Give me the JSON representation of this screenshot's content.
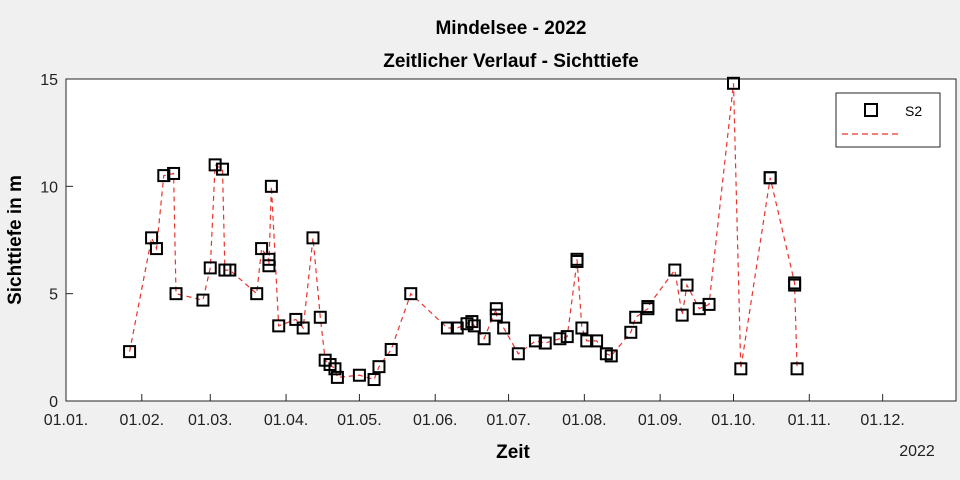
{
  "chart_data": {
    "type": "scatter",
    "title": [
      "Mindelsee - 2022",
      "Zeitlicher Verlauf - Sichttiefe"
    ],
    "xlabel": "Zeit",
    "ylabel": "Sichttiefe in m",
    "year_label": "2022",
    "ylim": [
      0,
      15
    ],
    "yticks": [
      "0",
      "5",
      "10",
      "15"
    ],
    "xlim": [
      "2022-01-01",
      "2022-12-31"
    ],
    "xtick_dates": [
      "2022-01-01",
      "2022-02-01",
      "2022-03-01",
      "2022-04-01",
      "2022-05-01",
      "2022-06-01",
      "2022-07-01",
      "2022-08-01",
      "2022-09-01",
      "2022-10-01",
      "2022-11-01",
      "2022-12-01"
    ],
    "xticks": [
      "01.01.",
      "01.02.",
      "01.03.",
      "01.04.",
      "01.05.",
      "01.06.",
      "01.07.",
      "01.08.",
      "01.09.",
      "01.10.",
      "01.11.",
      "01.12."
    ],
    "grid": false,
    "legend_position": "top-right",
    "series": [
      {
        "name": "S2",
        "marker": "square",
        "marker_color": "#000000",
        "line_color": "#e8342f",
        "line_style": "dashed",
        "x": [
          "2022-01-27",
          "2022-02-05",
          "2022-02-07",
          "2022-02-10",
          "2022-02-14",
          "2022-02-15",
          "2022-02-26",
          "2022-03-01",
          "2022-03-03",
          "2022-03-06",
          "2022-03-07",
          "2022-03-09",
          "2022-03-20",
          "2022-03-22",
          "2022-03-25",
          "2022-03-25",
          "2022-03-26",
          "2022-03-29",
          "2022-04-05",
          "2022-04-08",
          "2022-04-12",
          "2022-04-15",
          "2022-04-17",
          "2022-04-19",
          "2022-04-21",
          "2022-04-22",
          "2022-05-01",
          "2022-05-07",
          "2022-05-09",
          "2022-05-14",
          "2022-05-22",
          "2022-06-06",
          "2022-06-10",
          "2022-06-14",
          "2022-06-16",
          "2022-06-17",
          "2022-06-21",
          "2022-06-26",
          "2022-06-26",
          "2022-06-29",
          "2022-07-05",
          "2022-07-12",
          "2022-07-16",
          "2022-07-22",
          "2022-07-25",
          "2022-07-29",
          "2022-07-29",
          "2022-07-31",
          "2022-08-02",
          "2022-08-06",
          "2022-08-10",
          "2022-08-12",
          "2022-08-20",
          "2022-08-22",
          "2022-08-27",
          "2022-08-27",
          "2022-09-07",
          "2022-09-10",
          "2022-09-12",
          "2022-09-17",
          "2022-09-21",
          "2022-10-01",
          "2022-10-04",
          "2022-10-16",
          "2022-10-16",
          "2022-10-26",
          "2022-10-26",
          "2022-10-27"
        ],
        "y": [
          2.3,
          7.6,
          7.1,
          10.5,
          10.6,
          5.0,
          4.7,
          6.2,
          11.0,
          10.8,
          6.1,
          6.1,
          5.0,
          7.1,
          6.6,
          6.3,
          10.0,
          3.5,
          3.8,
          3.4,
          7.6,
          3.9,
          1.9,
          1.7,
          1.5,
          1.1,
          1.2,
          1.0,
          1.6,
          2.4,
          5.0,
          3.4,
          3.4,
          3.6,
          3.7,
          3.5,
          2.9,
          4.3,
          4.0,
          3.4,
          2.2,
          2.8,
          2.7,
          2.9,
          3.0,
          6.5,
          6.6,
          3.4,
          2.8,
          2.8,
          2.2,
          2.1,
          3.2,
          3.9,
          4.3,
          4.4,
          6.1,
          4.0,
          5.4,
          4.3,
          4.5,
          14.8,
          1.5,
          10.4,
          10.4,
          5.5,
          5.4,
          1.5
        ]
      }
    ]
  }
}
